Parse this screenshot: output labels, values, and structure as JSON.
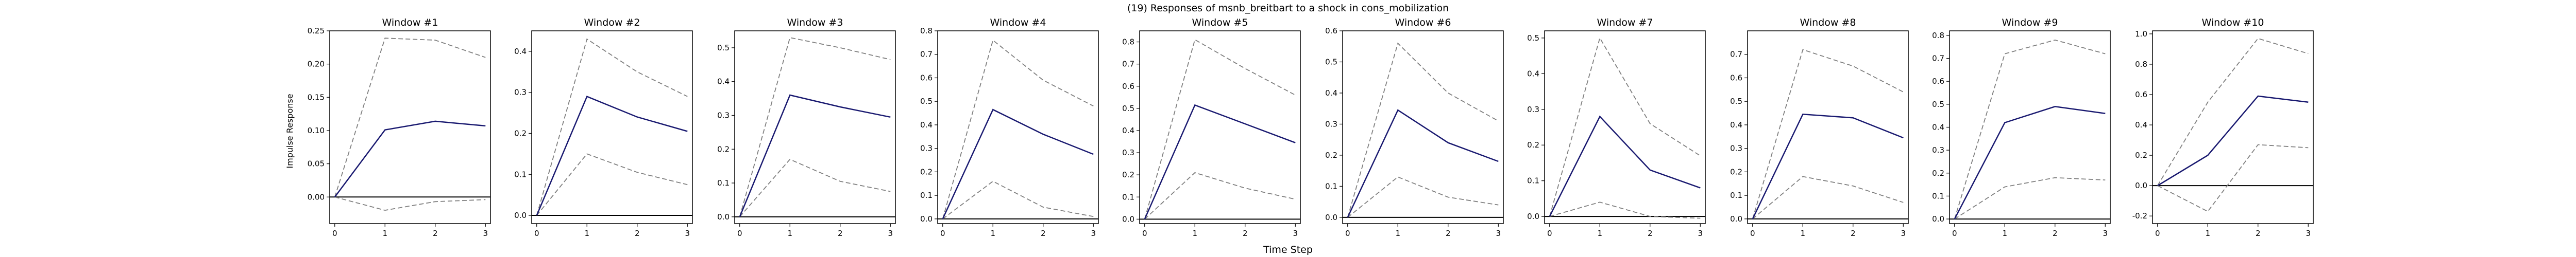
{
  "suptitle": "(19) Responses of msnb_breitbart to a shock in cons_mobilization",
  "xlabel": "Time Step",
  "ylabel": "Impulse Response",
  "colors": {
    "response": "#191970",
    "bands": "#808080",
    "zero_line": "#000000",
    "frame": "#000000"
  },
  "chart_data": [
    {
      "type": "line",
      "title": "Window #1",
      "x": [
        0,
        1,
        2,
        3
      ],
      "xticks": [
        "0",
        "1",
        "2",
        "3"
      ],
      "yticks": [
        "0.00",
        "0.05",
        "0.10",
        "0.15",
        "0.20",
        "0.25"
      ],
      "ylim": [
        -0.04,
        0.25
      ],
      "series": [
        {
          "role": "response",
          "values": [
            0.0,
            0.101,
            0.114,
            0.107
          ]
        },
        {
          "role": "upper",
          "values": [
            0.0,
            0.239,
            0.236,
            0.21
          ]
        },
        {
          "role": "lower",
          "values": [
            0.0,
            -0.02,
            -0.007,
            -0.004
          ]
        }
      ]
    },
    {
      "type": "line",
      "title": "Window #2",
      "x": [
        0,
        1,
        2,
        3
      ],
      "xticks": [
        "0",
        "1",
        "2",
        "3"
      ],
      "yticks": [
        "0.0",
        "0.1",
        "0.2",
        "0.3",
        "0.4"
      ],
      "ylim": [
        -0.02,
        0.45
      ],
      "series": [
        {
          "role": "response",
          "values": [
            0.0,
            0.29,
            0.24,
            0.205
          ]
        },
        {
          "role": "upper",
          "values": [
            0.0,
            0.43,
            0.35,
            0.29
          ]
        },
        {
          "role": "lower",
          "values": [
            0.0,
            0.15,
            0.105,
            0.075
          ]
        }
      ]
    },
    {
      "type": "line",
      "title": "Window #3",
      "x": [
        0,
        1,
        2,
        3
      ],
      "xticks": [
        "0",
        "1",
        "2",
        "3"
      ],
      "yticks": [
        "0.0",
        "0.1",
        "0.2",
        "0.3",
        "0.4",
        "0.5"
      ],
      "ylim": [
        -0.02,
        0.55
      ],
      "series": [
        {
          "role": "response",
          "values": [
            0.0,
            0.36,
            0.325,
            0.295
          ]
        },
        {
          "role": "upper",
          "values": [
            0.0,
            0.53,
            0.5,
            0.465
          ]
        },
        {
          "role": "lower",
          "values": [
            0.0,
            0.17,
            0.105,
            0.075
          ]
        }
      ]
    },
    {
      "type": "line",
      "title": "Window #4",
      "x": [
        0,
        1,
        2,
        3
      ],
      "xticks": [
        "0",
        "1",
        "2",
        "3"
      ],
      "yticks": [
        "0.0",
        "0.1",
        "0.2",
        "0.3",
        "0.4",
        "0.5",
        "0.6",
        "0.7",
        "0.8"
      ],
      "ylim": [
        -0.02,
        0.8
      ],
      "series": [
        {
          "role": "response",
          "values": [
            0.0,
            0.465,
            0.36,
            0.275
          ]
        },
        {
          "role": "upper",
          "values": [
            0.0,
            0.76,
            0.59,
            0.48
          ]
        },
        {
          "role": "lower",
          "values": [
            0.0,
            0.16,
            0.05,
            0.01
          ]
        }
      ]
    },
    {
      "type": "line",
      "title": "Window #5",
      "x": [
        0,
        1,
        2,
        3
      ],
      "xticks": [
        "0",
        "1",
        "2",
        "3"
      ],
      "yticks": [
        "0.0",
        "0.1",
        "0.2",
        "0.3",
        "0.4",
        "0.5",
        "0.6",
        "0.7",
        "0.8"
      ],
      "ylim": [
        -0.02,
        0.85
      ],
      "series": [
        {
          "role": "response",
          "values": [
            0.0,
            0.515,
            0.43,
            0.345
          ]
        },
        {
          "role": "upper",
          "values": [
            0.0,
            0.81,
            0.68,
            0.56
          ]
        },
        {
          "role": "lower",
          "values": [
            0.0,
            0.21,
            0.14,
            0.09
          ]
        }
      ]
    },
    {
      "type": "line",
      "title": "Window #6",
      "x": [
        0,
        1,
        2,
        3
      ],
      "xticks": [
        "0",
        "1",
        "2",
        "3"
      ],
      "yticks": [
        "0.0",
        "0.1",
        "0.2",
        "0.3",
        "0.4",
        "0.5",
        "0.6"
      ],
      "ylim": [
        -0.02,
        0.6
      ],
      "series": [
        {
          "role": "response",
          "values": [
            0.0,
            0.345,
            0.24,
            0.18
          ]
        },
        {
          "role": "upper",
          "values": [
            0.0,
            0.56,
            0.4,
            0.31
          ]
        },
        {
          "role": "lower",
          "values": [
            0.0,
            0.13,
            0.065,
            0.04
          ]
        }
      ]
    },
    {
      "type": "line",
      "title": "Window #7",
      "x": [
        0,
        1,
        2,
        3
      ],
      "xticks": [
        "0",
        "1",
        "2",
        "3"
      ],
      "yticks": [
        "0.0",
        "0.1",
        "0.2",
        "0.3",
        "0.4",
        "0.5"
      ],
      "ylim": [
        -0.02,
        0.52
      ],
      "series": [
        {
          "role": "response",
          "values": [
            0.0,
            0.28,
            0.13,
            0.08
          ]
        },
        {
          "role": "upper",
          "values": [
            0.0,
            0.5,
            0.26,
            0.17
          ]
        },
        {
          "role": "lower",
          "values": [
            0.0,
            0.04,
            0.0,
            -0.005
          ]
        }
      ]
    },
    {
      "type": "line",
      "title": "Window #8",
      "x": [
        0,
        1,
        2,
        3
      ],
      "xticks": [
        "0",
        "1",
        "2",
        "3"
      ],
      "yticks": [
        "0.0",
        "0.1",
        "0.2",
        "0.3",
        "0.4",
        "0.5",
        "0.6",
        "0.7"
      ],
      "ylim": [
        -0.02,
        0.8
      ],
      "series": [
        {
          "role": "response",
          "values": [
            0.0,
            0.445,
            0.43,
            0.345
          ]
        },
        {
          "role": "upper",
          "values": [
            0.0,
            0.72,
            0.65,
            0.54
          ]
        },
        {
          "role": "lower",
          "values": [
            0.0,
            0.18,
            0.14,
            0.07
          ]
        }
      ]
    },
    {
      "type": "line",
      "title": "Window #9",
      "x": [
        0,
        1,
        2,
        3
      ],
      "xticks": [
        "0",
        "1",
        "2",
        "3"
      ],
      "yticks": [
        "0.0",
        "0.1",
        "0.2",
        "0.3",
        "0.4",
        "0.5",
        "0.6",
        "0.7",
        "0.8"
      ],
      "ylim": [
        -0.02,
        0.82
      ],
      "series": [
        {
          "role": "response",
          "values": [
            0.0,
            0.42,
            0.49,
            0.46
          ]
        },
        {
          "role": "upper",
          "values": [
            0.0,
            0.72,
            0.78,
            0.72
          ]
        },
        {
          "role": "lower",
          "values": [
            0.0,
            0.14,
            0.18,
            0.17
          ]
        }
      ]
    },
    {
      "type": "line",
      "title": "Window #10",
      "x": [
        0,
        1,
        2,
        3
      ],
      "xticks": [
        "0",
        "1",
        "2",
        "3"
      ],
      "yticks": [
        "-0.2",
        "0.0",
        "0.2",
        "0.4",
        "0.6",
        "0.8",
        "1.0"
      ],
      "ylim": [
        -0.25,
        1.02
      ],
      "series": [
        {
          "role": "response",
          "values": [
            0.0,
            0.2,
            0.59,
            0.55
          ]
        },
        {
          "role": "upper",
          "values": [
            0.0,
            0.55,
            0.97,
            0.87
          ]
        },
        {
          "role": "lower",
          "values": [
            0.0,
            -0.17,
            0.27,
            0.25
          ]
        }
      ]
    }
  ]
}
